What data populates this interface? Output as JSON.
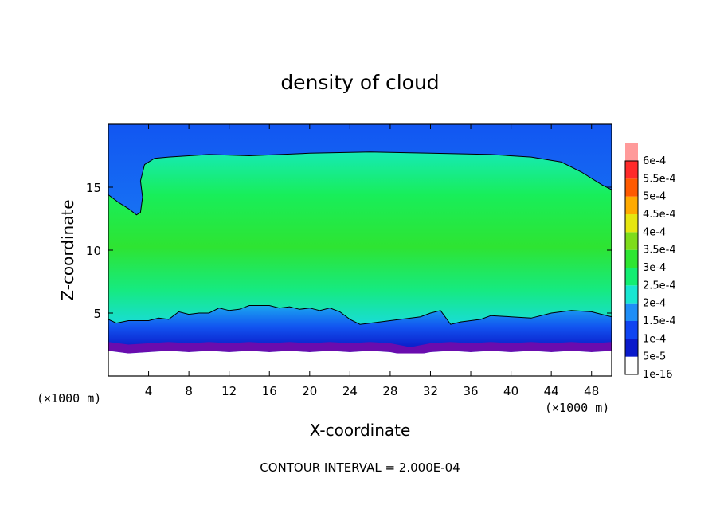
{
  "chart_data": {
    "type": "heatmap",
    "title": "density of cloud",
    "xlabel": "X-coordinate",
    "ylabel": "Z-coordinate",
    "x_unit": "(×1000 m)",
    "y_unit": "(×1000 m)",
    "xlim": [
      0,
      50
    ],
    "ylim": [
      0,
      20
    ],
    "x_ticks": [
      4,
      8,
      12,
      16,
      20,
      24,
      28,
      32,
      36,
      40,
      44,
      48
    ],
    "y_ticks": [
      5,
      10,
      15
    ],
    "grid": false,
    "contour_interval_label": "CONTOUR INTERVAL = 2.000E-04",
    "colorbar": {
      "levels": [
        {
          "label": "1e-16",
          "color": "#6a0cae"
        },
        {
          "label": "5e-5",
          "color": "#0a1acb"
        },
        {
          "label": "1e-4",
          "color": "#0f44f2"
        },
        {
          "label": "1.5e-4",
          "color": "#1e8ef7"
        },
        {
          "label": "2e-4",
          "color": "#18e6d2"
        },
        {
          "label": "2.5e-4",
          "color": "#12ee72"
        },
        {
          "label": "3e-4",
          "color": "#2ee632"
        },
        {
          "label": "3.5e-4",
          "color": "#7edc1a"
        },
        {
          "label": "4e-4",
          "color": "#e6e610"
        },
        {
          "label": "4.5e-4",
          "color": "#ffaa00"
        },
        {
          "label": "5e-4",
          "color": "#ff5a00"
        },
        {
          "label": "5.5e-4",
          "color": "#ff2a2a"
        },
        {
          "label": "6e-4",
          "color": "#ff9a9a"
        }
      ]
    },
    "bands": {
      "cloud_base": [
        [
          0,
          2.0
        ],
        [
          2,
          1.8
        ],
        [
          4,
          1.9
        ],
        [
          6,
          2.0
        ],
        [
          8,
          1.9
        ],
        [
          10,
          2.0
        ],
        [
          12,
          1.9
        ],
        [
          14,
          2.0
        ],
        [
          16,
          1.9
        ],
        [
          18,
          2.0
        ],
        [
          20,
          1.9
        ],
        [
          22,
          2.0
        ],
        [
          24,
          1.9
        ],
        [
          26,
          2.0
        ],
        [
          28,
          1.9
        ],
        [
          30,
          1.6
        ],
        [
          32,
          1.9
        ],
        [
          34,
          2.0
        ],
        [
          36,
          1.9
        ],
        [
          38,
          2.0
        ],
        [
          40,
          1.9
        ],
        [
          42,
          2.0
        ],
        [
          44,
          1.9
        ],
        [
          46,
          2.0
        ],
        [
          48,
          1.9
        ],
        [
          50,
          2.0
        ]
      ],
      "contour_low": [
        [
          0,
          4.5
        ],
        [
          0.8,
          4.2
        ],
        [
          2,
          4.4
        ],
        [
          4,
          4.4
        ],
        [
          5,
          4.6
        ],
        [
          6,
          4.5
        ],
        [
          7,
          5.1
        ],
        [
          8,
          4.9
        ],
        [
          9,
          5.0
        ],
        [
          10,
          5.0
        ],
        [
          11,
          5.4
        ],
        [
          12,
          5.2
        ],
        [
          13,
          5.3
        ],
        [
          14,
          5.6
        ],
        [
          16,
          5.6
        ],
        [
          17,
          5.4
        ],
        [
          18,
          5.5
        ],
        [
          19,
          5.3
        ],
        [
          20,
          5.4
        ],
        [
          21,
          5.2
        ],
        [
          22,
          5.4
        ],
        [
          23,
          5.1
        ],
        [
          24,
          4.5
        ],
        [
          25,
          4.1
        ],
        [
          27,
          4.3
        ],
        [
          29,
          4.5
        ],
        [
          31,
          4.7
        ],
        [
          32,
          5.0
        ],
        [
          33,
          5.2
        ],
        [
          34,
          4.1
        ],
        [
          35,
          4.3
        ],
        [
          36,
          4.4
        ],
        [
          37,
          4.5
        ],
        [
          38,
          4.8
        ],
        [
          40,
          4.7
        ],
        [
          42,
          4.6
        ],
        [
          44,
          5.0
        ],
        [
          46,
          5.2
        ],
        [
          48,
          5.1
        ],
        [
          50,
          4.7
        ]
      ],
      "contour_high": [
        [
          0,
          14.4
        ],
        [
          1,
          13.8
        ],
        [
          2,
          13.3
        ],
        [
          2.8,
          12.8
        ],
        [
          3.2,
          13.0
        ],
        [
          3.4,
          14.2
        ],
        [
          3.2,
          15.5
        ],
        [
          3.6,
          16.8
        ],
        [
          4.6,
          17.3
        ],
        [
          6,
          17.4
        ],
        [
          8,
          17.5
        ],
        [
          10,
          17.6
        ],
        [
          14,
          17.5
        ],
        [
          20,
          17.7
        ],
        [
          26,
          17.8
        ],
        [
          32,
          17.7
        ],
        [
          38,
          17.6
        ],
        [
          42,
          17.4
        ],
        [
          45,
          17.0
        ],
        [
          47,
          16.2
        ],
        [
          49,
          15.2
        ],
        [
          50,
          14.8
        ]
      ]
    }
  }
}
